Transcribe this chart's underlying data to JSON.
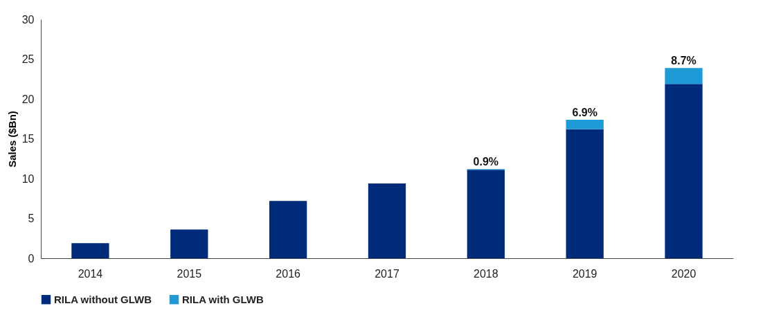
{
  "chart_data": {
    "type": "bar",
    "stacked": true,
    "ylabel": "Sales ($Bn)",
    "categories": [
      "2014",
      "2015",
      "2016",
      "2017",
      "2018",
      "2019",
      "2020"
    ],
    "series": [
      {
        "name": "RILA without GLWB",
        "color": "#002b7a",
        "values": [
          1.9,
          3.6,
          7.2,
          9.4,
          11.1,
          16.2,
          21.9
        ]
      },
      {
        "name": "RILA with GLWB",
        "color": "#1e9ad6",
        "values": [
          null,
          null,
          null,
          null,
          0.1,
          1.2,
          2.0
        ]
      }
    ],
    "annotations": [
      {
        "text": "0.9%",
        "x": "2018",
        "y": 11.2
      },
      {
        "text": "6.9%",
        "x": "2019",
        "y": 17.4
      },
      {
        "text": "8.7%",
        "x": "2020",
        "y": 23.9
      }
    ],
    "ylim": [
      0,
      30
    ],
    "yticks": [
      0,
      5,
      10,
      15,
      20,
      25,
      30
    ],
    "grid": false,
    "legend": "bottom"
  }
}
